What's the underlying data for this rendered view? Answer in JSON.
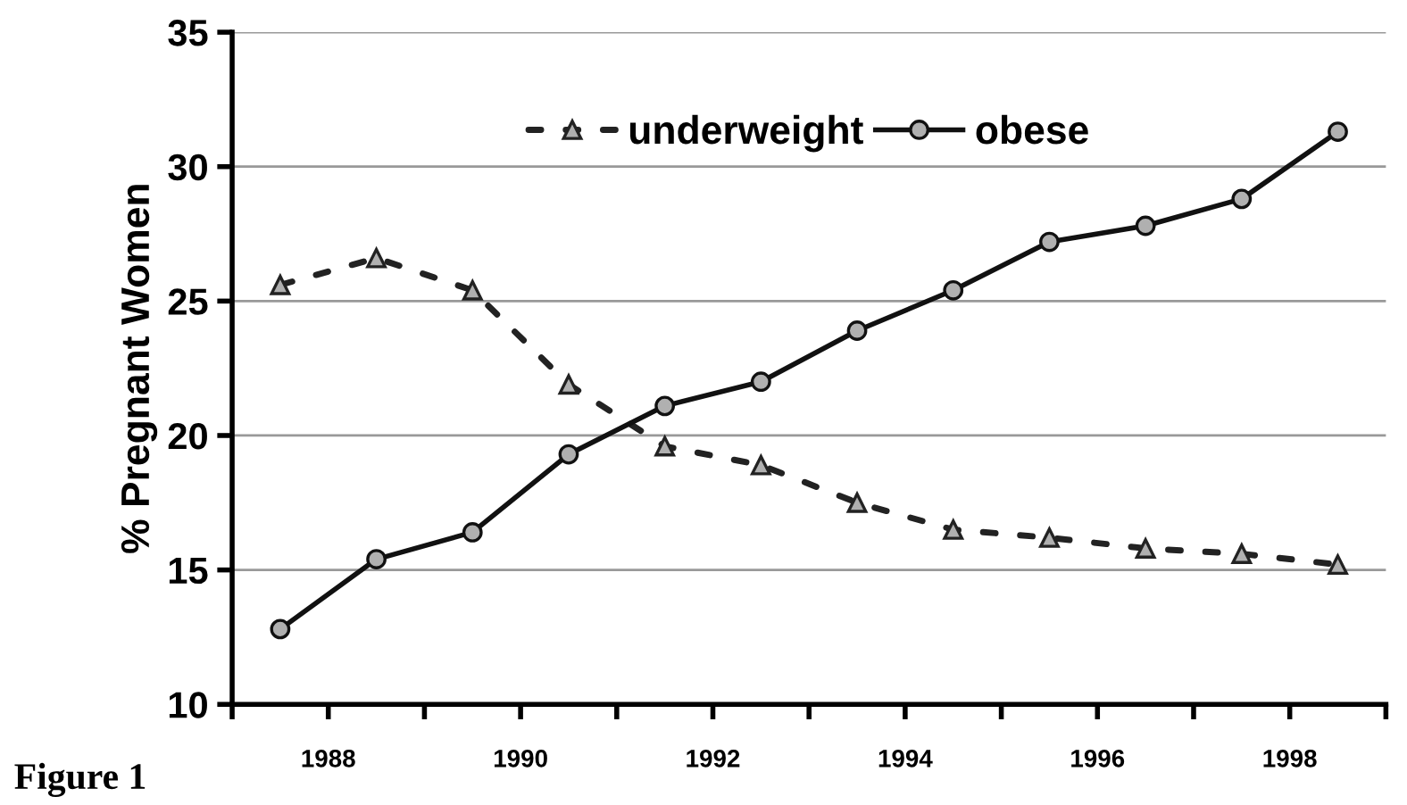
{
  "chart_data": {
    "type": "line",
    "ylabel": "% Pregnant Women",
    "x": [
      1987.5,
      1988.5,
      1989.5,
      1990.5,
      1991.5,
      1992.5,
      1993.5,
      1994.5,
      1995.5,
      1996.5,
      1997.5,
      1998.5
    ],
    "series": [
      {
        "name": "underweight",
        "color": "#222222",
        "marker": "triangle",
        "line_style": "dotted",
        "values": [
          25.6,
          26.6,
          25.4,
          21.9,
          19.6,
          18.9,
          17.5,
          16.5,
          16.2,
          15.8,
          15.6,
          15.2
        ]
      },
      {
        "name": "obese",
        "color": "#111111",
        "marker": "circle",
        "line_style": "solid",
        "values": [
          12.8,
          15.4,
          16.4,
          19.3,
          21.1,
          22.0,
          23.9,
          25.4,
          27.2,
          27.8,
          28.8,
          31.3
        ]
      }
    ],
    "xlim": [
      1987,
      1999
    ],
    "xticks": [
      {
        "value": 1987,
        "label": null
      },
      1988,
      {
        "value": 1989,
        "label": null
      },
      1990,
      {
        "value": 1991,
        "label": null
      },
      1992,
      {
        "value": 1993,
        "label": null
      },
      1994,
      {
        "value": 1995,
        "label": null
      },
      1996,
      {
        "value": 1997,
        "label": null
      },
      1998,
      {
        "value": 1999,
        "label": null
      }
    ],
    "ylim": [
      10,
      35
    ],
    "yticks": [
      10,
      15,
      20,
      25,
      30,
      35
    ],
    "grid": "y",
    "legend": "top",
    "annotations": [
      "Figure 1"
    ]
  }
}
